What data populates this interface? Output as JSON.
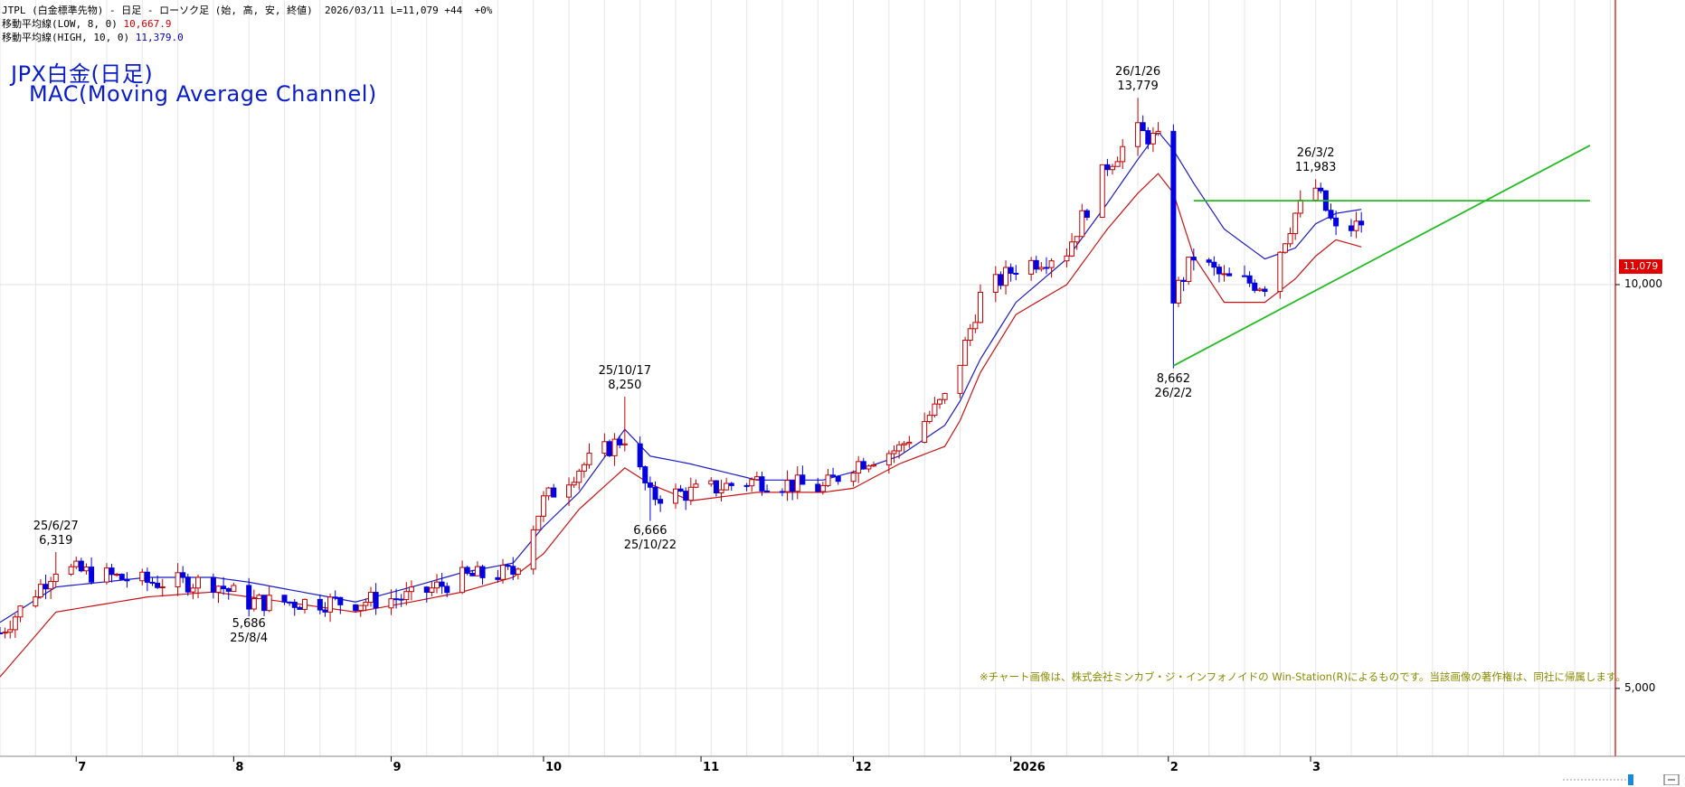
{
  "header": {
    "line1": "JTPL (白金標準先物) - 日足 - ローソク足 (始, 高, 安, 終値)  2026/03/11 L=11,079 +44  +0%",
    "ma_low_label": "移動平均線(LOW, 8, 0)",
    "ma_low_value": "10,667.9",
    "ma_high_label": "移動平均線(HIGH, 10, 0)",
    "ma_high_value": "11,379.0"
  },
  "title": {
    "line1": "JPX白金(日足)",
    "line2": "MAC(Moving Average Channel)"
  },
  "note": "※チャート画像は、株式会社ミンカブ・ジ・インフォノイドの Win-Station(R)によるものです。当該画像の著作権は、同社に帰属します。",
  "last_price_badge": "11,079",
  "colors": {
    "up_candle": "#c00000",
    "down_candle": "#0000e0",
    "ma_high": "#1a1ac8",
    "ma_low": "#c81414",
    "trendline": "#22bb22",
    "axis_line": "#cc0000"
  },
  "chart_data": {
    "type": "candlestick",
    "y_axis": {
      "scale": "log",
      "ticks": [
        5000,
        10000
      ],
      "tick_labels": [
        "5,000",
        "10,000"
      ],
      "ylim": [
        4450,
        16300
      ]
    },
    "x_axis": {
      "tick_labels": [
        "7",
        "8",
        "9",
        "10",
        "11",
        "12",
        "2026",
        "2",
        "3"
      ],
      "range": [
        "2025-06-16",
        "2026-04-30"
      ]
    },
    "x_ticks": [
      {
        "label": "7",
        "date": "2025-07-01"
      },
      {
        "label": "8",
        "date": "2025-08-01"
      },
      {
        "label": "9",
        "date": "2025-09-01"
      },
      {
        "label": "10",
        "date": "2025-10-01"
      },
      {
        "label": "11",
        "date": "2025-11-01"
      },
      {
        "label": "12",
        "date": "2025-12-01"
      },
      {
        "label": "2026",
        "date": "2026-01-01"
      },
      {
        "label": "2",
        "date": "2026-02-01"
      },
      {
        "label": "3",
        "date": "2026-03-01"
      }
    ],
    "series": [
      {
        "name": "移動平均線(HIGH, 10, 0)",
        "role": "ma_high"
      },
      {
        "name": "移動平均線(LOW, 8, 0)",
        "role": "ma_low"
      }
    ],
    "anchors": [
      {
        "date": "2025-06-16",
        "close": 5500,
        "ma_high": 5600,
        "ma_low": 5100
      },
      {
        "date": "2025-06-27",
        "close": 6150,
        "ma_high": 5950,
        "ma_low": 5700
      },
      {
        "date": "2025-07-15",
        "close": 6000,
        "ma_high": 6050,
        "ma_low": 5850
      },
      {
        "date": "2025-07-28",
        "close": 6000,
        "ma_high": 6050,
        "ma_low": 5900
      },
      {
        "date": "2025-08-04",
        "close": 5800,
        "ma_high": 6000,
        "ma_low": 5850
      },
      {
        "date": "2025-08-25",
        "close": 5800,
        "ma_high": 5800,
        "ma_low": 5700
      },
      {
        "date": "2025-09-05",
        "close": 5850,
        "ma_high": 5950,
        "ma_low": 5800
      },
      {
        "date": "2025-09-15",
        "close": 6050,
        "ma_high": 6100,
        "ma_low": 5900
      },
      {
        "date": "2025-09-25",
        "close": 6100,
        "ma_high": 6200,
        "ma_low": 6050
      },
      {
        "date": "2025-10-01",
        "close": 6900,
        "ma_high": 6600,
        "ma_low": 6300
      },
      {
        "date": "2025-10-08",
        "close": 7300,
        "ma_high": 7000,
        "ma_low": 6800
      },
      {
        "date": "2025-10-17",
        "close": 7700,
        "ma_high": 7800,
        "ma_low": 7300
      },
      {
        "date": "2025-10-22",
        "close": 6950,
        "ma_high": 7450,
        "ma_low": 7100
      },
      {
        "date": "2025-10-30",
        "close": 7000,
        "ma_high": 7350,
        "ma_low": 6900
      },
      {
        "date": "2025-11-12",
        "close": 7150,
        "ma_high": 7150,
        "ma_low": 7000
      },
      {
        "date": "2025-11-25",
        "close": 7050,
        "ma_high": 7150,
        "ma_low": 7000
      },
      {
        "date": "2025-12-01",
        "close": 7350,
        "ma_high": 7250,
        "ma_low": 7050
      },
      {
        "date": "2025-12-10",
        "close": 7550,
        "ma_high": 7450,
        "ma_low": 7350
      },
      {
        "date": "2025-12-20",
        "close": 8300,
        "ma_high": 7900,
        "ma_low": 7600
      },
      {
        "date": "2025-12-26",
        "close": 9800,
        "ma_high": 8800,
        "ma_low": 8600
      },
      {
        "date": "2026-01-02",
        "close": 10300,
        "ma_high": 9700,
        "ma_low": 9500
      },
      {
        "date": "2026-01-12",
        "close": 10600,
        "ma_high": 10450,
        "ma_low": 10000
      },
      {
        "date": "2026-01-20",
        "close": 12300,
        "ma_high": 11500,
        "ma_low": 11000
      },
      {
        "date": "2026-01-26",
        "close": 13000,
        "ma_high": 12400,
        "ma_low": 11700
      },
      {
        "date": "2026-01-30",
        "close": 12800,
        "ma_high": 13000,
        "ma_low": 12100
      },
      {
        "date": "2026-02-02",
        "close": 9800,
        "ma_high": 12600,
        "ma_low": 11700
      },
      {
        "date": "2026-02-06",
        "close": 10500,
        "ma_high": 11900,
        "ma_low": 10500
      },
      {
        "date": "2026-02-12",
        "close": 10100,
        "ma_high": 11000,
        "ma_low": 9700
      },
      {
        "date": "2026-02-20",
        "close": 10000,
        "ma_high": 10450,
        "ma_low": 9700
      },
      {
        "date": "2026-02-26",
        "close": 11300,
        "ma_high": 10650,
        "ma_low": 10100
      },
      {
        "date": "2026-03-02",
        "close": 11800,
        "ma_high": 11100,
        "ma_low": 10500
      },
      {
        "date": "2026-03-06",
        "close": 10950,
        "ma_high": 11300,
        "ma_low": 10800
      },
      {
        "date": "2026-03-11",
        "close": 11079,
        "ma_high": 11379,
        "ma_low": 10668
      }
    ],
    "lines": [
      {
        "name": "resistance",
        "points": [
          [
            "2026-02-06",
            11550
          ],
          [
            "2026-04-25",
            11550
          ]
        ]
      },
      {
        "name": "support",
        "points": [
          [
            "2026-02-02",
            8700
          ],
          [
            "2026-04-25",
            12700
          ]
        ]
      }
    ],
    "annotations": [
      {
        "date_label": "25/6/27",
        "price_label": "6,319",
        "date": "2025-06-27",
        "value": 6319,
        "where": "above"
      },
      {
        "date_label": "25/8/4",
        "price_label": "5,686",
        "date": "2025-08-04",
        "value": 5686,
        "where": "below"
      },
      {
        "date_label": "25/10/17",
        "price_label": "8,250",
        "date": "2025-10-17",
        "value": 8250,
        "where": "above"
      },
      {
        "date_label": "25/10/22",
        "price_label": "6,666",
        "date": "2025-10-22",
        "value": 6666,
        "where": "below"
      },
      {
        "date_label": "26/1/26",
        "price_label": "13,779",
        "date": "2026-01-26",
        "value": 13779,
        "where": "above"
      },
      {
        "date_label": "26/2/2",
        "price_label": "8,662",
        "date": "2026-02-02",
        "value": 8662,
        "where": "below"
      },
      {
        "date_label": "26/3/2",
        "price_label": "11,983",
        "date": "2026-03-02",
        "value": 11983,
        "where": "above"
      }
    ],
    "last_close": {
      "date": "2026-03-11",
      "value": 11079
    }
  }
}
